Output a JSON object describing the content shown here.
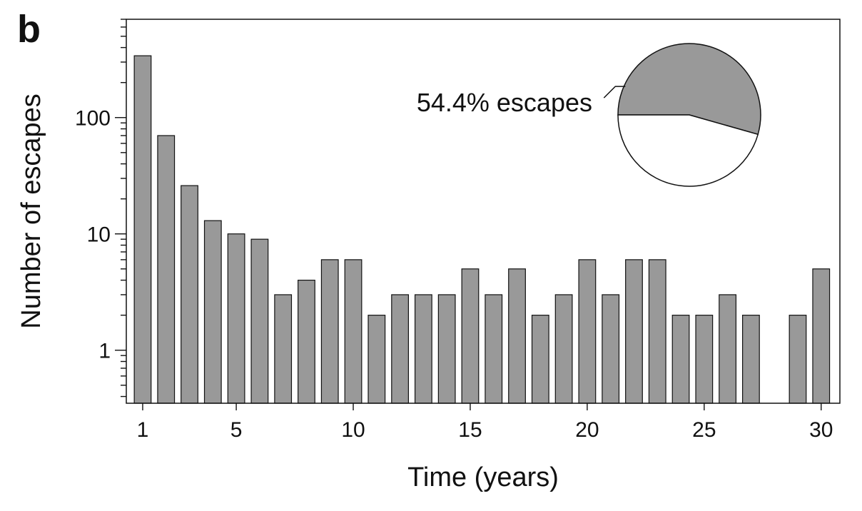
{
  "panel_label": "b",
  "chart_data": {
    "type": "bar",
    "title": "",
    "xlabel": "Time (years)",
    "ylabel": "Number of escapes",
    "yscale": "log",
    "ylim": [
      0.35,
      700
    ],
    "xlim": [
      0.3,
      30.8
    ],
    "xticks": [
      1,
      5,
      10,
      15,
      20,
      25,
      30
    ],
    "yticks": [
      1,
      10,
      100
    ],
    "ytick_labels": [
      "1",
      "10",
      "100"
    ],
    "bar_color": "#999999",
    "x": [
      1,
      2,
      3,
      4,
      5,
      6,
      7,
      8,
      9,
      10,
      11,
      12,
      13,
      14,
      15,
      16,
      17,
      18,
      19,
      20,
      21,
      22,
      23,
      24,
      25,
      26,
      27,
      28,
      29,
      30
    ],
    "values": [
      340,
      70,
      26,
      13,
      10,
      9,
      3,
      4,
      6,
      6,
      2,
      3,
      3,
      3,
      5,
      3,
      5,
      2,
      3,
      6,
      3,
      6,
      6,
      2,
      2,
      3,
      2,
      0,
      2,
      5
    ]
  },
  "inset_pie": {
    "type": "pie",
    "label": "54.4% escapes",
    "escape_fraction": 0.544,
    "escape_color": "#999999",
    "remainder_color": "#ffffff"
  }
}
